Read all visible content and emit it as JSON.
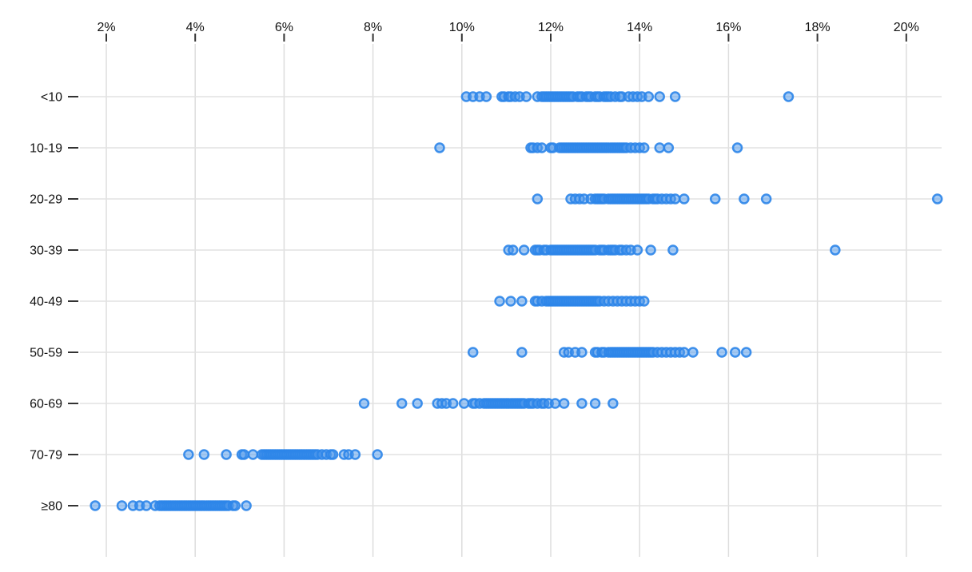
{
  "chart_data": {
    "type": "scatter",
    "variant": "strip-plot",
    "title": "",
    "xlabel": "",
    "ylabel": "",
    "legend": "none",
    "grid": "on",
    "x_axis": {
      "position": "top",
      "unit": "%",
      "min": 1.2,
      "max": 21.4,
      "tick_values": [
        2,
        4,
        6,
        8,
        10,
        12,
        14,
        16,
        18,
        20
      ],
      "tick_labels": [
        "2%",
        "4%",
        "6%",
        "8%",
        "10%",
        "12%",
        "14%",
        "16%",
        "18%",
        "20%"
      ]
    },
    "categories": [
      "<10",
      "10-19",
      "20-29",
      "30-39",
      "40-49",
      "50-59",
      "60-69",
      "70-79",
      "≥80"
    ],
    "series": [
      {
        "category": "<10",
        "values": [
          10.1,
          10.25,
          10.4,
          10.55,
          10.9,
          10.95,
          11.05,
          11.1,
          11.2,
          11.3,
          11.45,
          11.7,
          11.8,
          11.85,
          11.9,
          11.95,
          12.0,
          12.05,
          12.1,
          12.15,
          12.2,
          12.25,
          12.3,
          12.35,
          12.4,
          12.45,
          12.5,
          12.6,
          12.65,
          12.7,
          12.8,
          12.85,
          12.9,
          13.0,
          13.05,
          13.1,
          13.2,
          13.25,
          13.3,
          13.35,
          13.45,
          13.55,
          13.6,
          13.75,
          13.85,
          13.95,
          14.05,
          14.2,
          14.45,
          14.8,
          17.35
        ]
      },
      {
        "category": "10-19",
        "values": [
          9.5,
          11.55,
          11.6,
          11.7,
          11.8,
          12.0,
          12.05,
          12.2,
          12.25,
          12.3,
          12.35,
          12.4,
          12.45,
          12.5,
          12.55,
          12.6,
          12.65,
          12.7,
          12.75,
          12.8,
          12.85,
          12.9,
          12.95,
          13.0,
          13.05,
          13.1,
          13.15,
          13.2,
          13.25,
          13.3,
          13.35,
          13.4,
          13.45,
          13.5,
          13.55,
          13.6,
          13.65,
          13.7,
          13.8,
          13.9,
          14.0,
          14.1,
          14.45,
          14.65,
          16.2
        ]
      },
      {
        "category": "20-29",
        "values": [
          11.7,
          12.45,
          12.55,
          12.65,
          12.75,
          12.9,
          13.0,
          13.05,
          13.1,
          13.15,
          13.2,
          13.3,
          13.35,
          13.4,
          13.45,
          13.5,
          13.55,
          13.6,
          13.65,
          13.7,
          13.75,
          13.8,
          13.85,
          13.9,
          13.95,
          14.0,
          14.05,
          14.1,
          14.15,
          14.2,
          14.3,
          14.35,
          14.4,
          14.5,
          14.6,
          14.7,
          14.8,
          15.0,
          15.7,
          16.35,
          16.85,
          20.7
        ]
      },
      {
        "category": "30-39",
        "values": [
          11.05,
          11.15,
          11.4,
          11.65,
          11.7,
          11.75,
          11.85,
          11.9,
          12.0,
          12.05,
          12.1,
          12.15,
          12.2,
          12.25,
          12.3,
          12.35,
          12.4,
          12.45,
          12.5,
          12.55,
          12.6,
          12.65,
          12.7,
          12.75,
          12.8,
          12.85,
          12.9,
          12.95,
          13.0,
          13.1,
          13.15,
          13.2,
          13.3,
          13.35,
          13.4,
          13.45,
          13.55,
          13.6,
          13.7,
          13.8,
          13.95,
          14.25,
          14.75,
          18.4
        ]
      },
      {
        "category": "40-49",
        "values": [
          10.85,
          11.1,
          11.35,
          11.65,
          11.7,
          11.8,
          11.9,
          11.95,
          12.0,
          12.05,
          12.1,
          12.15,
          12.2,
          12.25,
          12.3,
          12.35,
          12.4,
          12.45,
          12.5,
          12.55,
          12.6,
          12.65,
          12.7,
          12.75,
          12.8,
          12.85,
          12.9,
          12.95,
          13.0,
          13.05,
          13.1,
          13.2,
          13.3,
          13.4,
          13.5,
          13.6,
          13.7,
          13.8,
          13.9,
          14.0,
          14.1
        ]
      },
      {
        "category": "50-59",
        "values": [
          10.25,
          11.35,
          12.3,
          12.4,
          12.55,
          12.7,
          13.0,
          13.05,
          13.15,
          13.2,
          13.3,
          13.35,
          13.4,
          13.45,
          13.5,
          13.55,
          13.6,
          13.65,
          13.7,
          13.75,
          13.8,
          13.85,
          13.9,
          13.95,
          14.0,
          14.05,
          14.1,
          14.15,
          14.2,
          14.25,
          14.3,
          14.4,
          14.5,
          14.6,
          14.7,
          14.8,
          14.9,
          15.0,
          15.2,
          15.85,
          16.15,
          16.4
        ]
      },
      {
        "category": "60-69",
        "values": [
          7.8,
          8.65,
          9.0,
          9.45,
          9.55,
          9.65,
          9.8,
          10.05,
          10.25,
          10.3,
          10.4,
          10.5,
          10.55,
          10.6,
          10.65,
          10.7,
          10.75,
          10.8,
          10.85,
          10.9,
          10.95,
          11.0,
          11.05,
          11.1,
          11.15,
          11.2,
          11.25,
          11.3,
          11.35,
          11.4,
          11.5,
          11.55,
          11.6,
          11.7,
          11.8,
          11.85,
          11.95,
          12.1,
          12.3,
          12.7,
          13.0,
          13.4
        ]
      },
      {
        "category": "70-79",
        "values": [
          3.85,
          4.2,
          4.7,
          5.05,
          5.1,
          5.3,
          5.5,
          5.55,
          5.6,
          5.65,
          5.7,
          5.75,
          5.8,
          5.85,
          5.9,
          5.95,
          6.0,
          6.05,
          6.1,
          6.15,
          6.2,
          6.25,
          6.3,
          6.35,
          6.4,
          6.45,
          6.5,
          6.55,
          6.6,
          6.65,
          6.7,
          6.75,
          6.85,
          6.95,
          7.05,
          7.1,
          7.35,
          7.45,
          7.6,
          8.1
        ]
      },
      {
        "category": "≥80",
        "values": [
          1.75,
          2.35,
          2.6,
          2.75,
          2.9,
          3.1,
          3.2,
          3.25,
          3.3,
          3.35,
          3.4,
          3.45,
          3.5,
          3.55,
          3.6,
          3.65,
          3.7,
          3.75,
          3.8,
          3.85,
          3.9,
          3.95,
          4.0,
          4.05,
          4.1,
          4.15,
          4.2,
          4.25,
          4.3,
          4.35,
          4.4,
          4.45,
          4.5,
          4.55,
          4.6,
          4.65,
          4.7,
          4.75,
          4.85,
          4.9,
          5.15
        ]
      }
    ],
    "colors": {
      "dot_fill": "#4a95ec",
      "dot_stroke": "#2c85e9",
      "gridline": "#dddddd",
      "row_line": "#e2e2e2",
      "tick_mark": "#333333",
      "label": "#111111",
      "background": "#ffffff"
    }
  }
}
